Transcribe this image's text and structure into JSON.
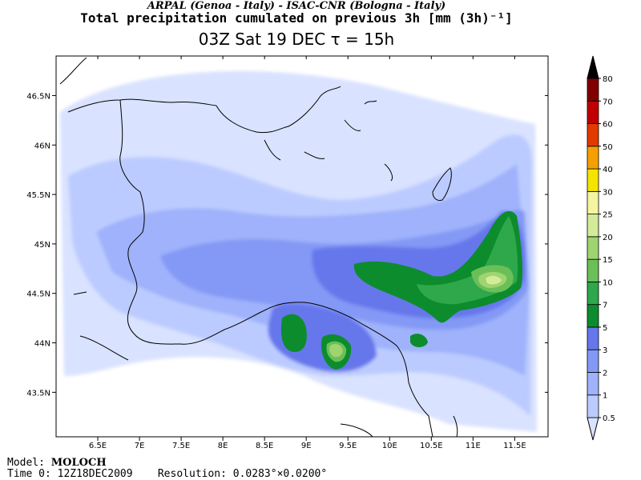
{
  "header": {
    "org_line": "ARPAL (Genoa - Italy)  -  ISAC-CNR (Bologna - Italy)",
    "title": "Total precipitation cumulated on previous 3h [mm (3h)⁻¹]",
    "valid_time": "03Z Sat 19 DEC   τ = 15h"
  },
  "map": {
    "lon_ticks": [
      "6.5E",
      "7E",
      "7.5E",
      "8E",
      "8.5E",
      "9E",
      "9.5E",
      "10E",
      "10.5E",
      "11E",
      "11.5E"
    ],
    "lat_ticks": [
      "46.5N",
      "46N",
      "45.5N",
      "45N",
      "44.5N",
      "44N",
      "43.5N"
    ],
    "lon_range": [
      6.0,
      11.9
    ],
    "lat_range": [
      43.05,
      46.9
    ]
  },
  "legend": {
    "levels": [
      "0.5",
      "1",
      "2",
      "3",
      "5",
      "7",
      "10",
      "15",
      "20",
      "25",
      "30",
      "40",
      "50",
      "60",
      "70",
      "80"
    ],
    "colors": [
      "#d9e2ff",
      "#bccbff",
      "#9fb2fb",
      "#8399f5",
      "#6677ec",
      "#0d8c2e",
      "#2ea84a",
      "#6bbf58",
      "#9fd470",
      "#d2ec9a",
      "#f5f5a0",
      "#f5e400",
      "#f5a000",
      "#e33a00",
      "#c00000",
      "#800000",
      "#000000"
    ]
  },
  "footer": {
    "model_label": "Model:",
    "model_name": "MOLOCH",
    "time_label": "Time 0:",
    "time_value": "12Z18DEC2009",
    "res_label": "Resolution:",
    "res_value": "0.0283°×0.0200°"
  }
}
